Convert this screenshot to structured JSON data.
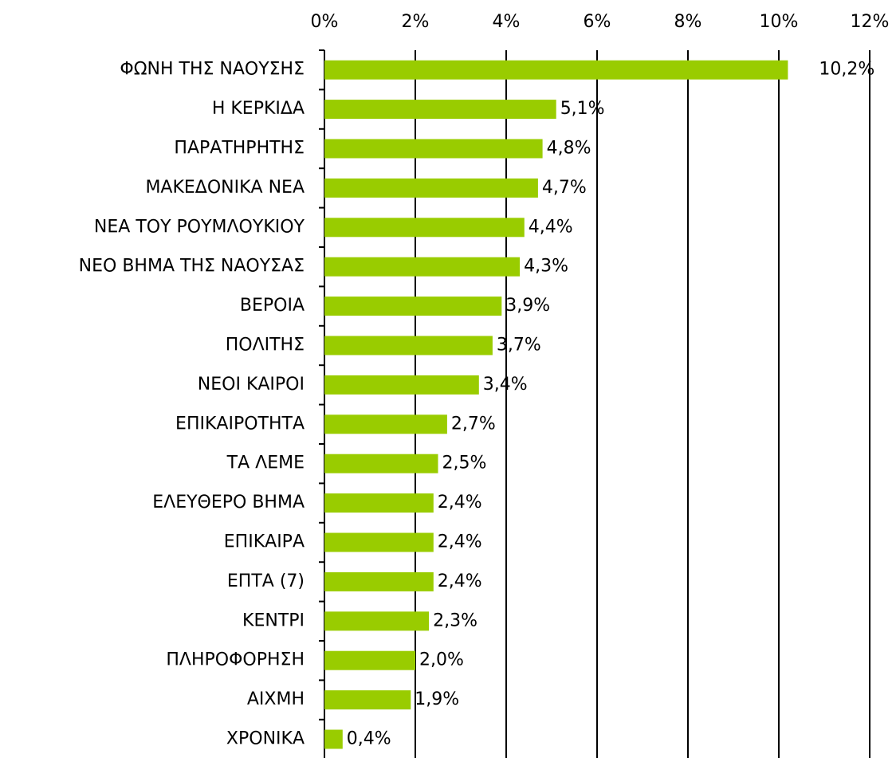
{
  "chart_data": {
    "type": "bar",
    "orientation": "horizontal",
    "categories": [
      "ΦΩΝΗ ΤΗΣ ΝΑΟΥΣΗΣ",
      "Η ΚΕΡΚΙΔΑ",
      "ΠΑΡΑΤΗΡΗΤΗΣ",
      "ΜΑΚΕΔΟΝΙΚΑ ΝΕΑ",
      "ΝΕΑ ΤΟΥ ΡΟΥΜΛΟΥΚΙΟΥ",
      "ΝΕΟ ΒΗΜΑ ΤΗΣ ΝΑΟΥΣΑΣ",
      "ΒΕΡΟΙΑ",
      "ΠΟΛΙΤΗΣ",
      "ΝΕΟΙ ΚΑΙΡΟΙ",
      "ΕΠΙΚΑΙΡΟΤΗΤΑ",
      "ΤΑ ΛΕΜΕ",
      "ΕΛΕΥΘΕΡΟ ΒΗΜΑ",
      "ΕΠΙΚΑΙΡΑ",
      "ΕΠΤΑ (7)",
      "ΚΕΝΤΡΙ",
      "ΠΛΗΡΟΦΟΡΗΣΗ",
      "ΑΙΧΜΗ",
      "ΧΡΟΝΙΚΑ"
    ],
    "values": [
      10.2,
      5.1,
      4.8,
      4.7,
      4.4,
      4.3,
      3.9,
      3.7,
      3.4,
      2.7,
      2.5,
      2.4,
      2.4,
      2.4,
      2.3,
      2.0,
      1.9,
      0.4
    ],
    "value_labels": [
      "10,2%",
      "5,1%",
      "4,8%",
      "4,7%",
      "4,4%",
      "4,3%",
      "3,9%",
      "3,7%",
      "3,4%",
      "2,7%",
      "2,5%",
      "2,4%",
      "2,4%",
      "2,4%",
      "2,3%",
      "2,0%",
      "1,9%",
      "0,4%"
    ],
    "color": "#99cc00",
    "xlim": [
      0,
      12
    ],
    "xticks": [
      {
        "value": 0,
        "label": "0%"
      },
      {
        "value": 2,
        "label": "2%"
      },
      {
        "value": 4,
        "label": "4%"
      },
      {
        "value": 6,
        "label": "6%"
      },
      {
        "value": 8,
        "label": "8%"
      },
      {
        "value": 10,
        "label": "10%"
      },
      {
        "value": 12,
        "label": "12%"
      }
    ],
    "grid": true
  }
}
